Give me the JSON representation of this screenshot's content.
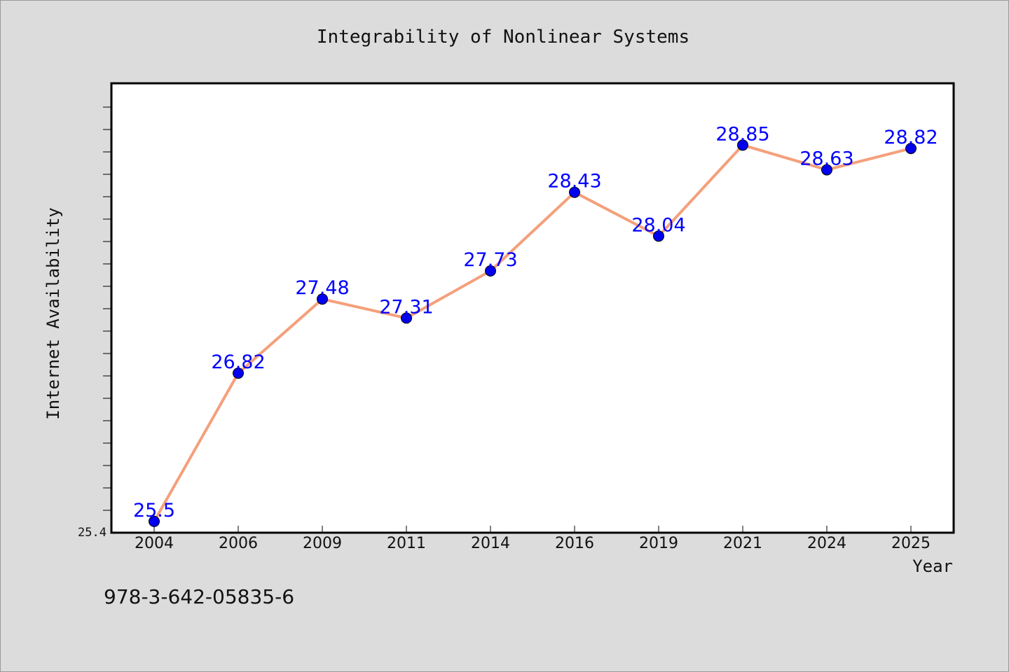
{
  "chart_data": {
    "type": "line",
    "title": "Integrability of Nonlinear Systems",
    "xlabel": "Year",
    "ylabel": "Internet Availability",
    "categories": [
      "2004",
      "2006",
      "2009",
      "2011",
      "2014",
      "2016",
      "2019",
      "2021",
      "2024",
      "2025"
    ],
    "series": [
      {
        "values": [
          25.5,
          26.82,
          27.48,
          27.31,
          27.73,
          28.43,
          28.04,
          28.85,
          28.63,
          28.82
        ],
        "labels": [
          "25.5",
          "26.82",
          "27.48",
          "27.31",
          "27.73",
          "28.43",
          "28.04",
          "28.85",
          "28.63",
          "28.82"
        ],
        "line_color": "#f4a07c",
        "marker_color": "#0000ee",
        "label_color": "#0000ff"
      }
    ],
    "ylim": [
      25.4,
      29.4
    ],
    "ytick_labels": [
      "25.4"
    ],
    "grid": false
  },
  "footer_text": "978-3-642-05835-6"
}
